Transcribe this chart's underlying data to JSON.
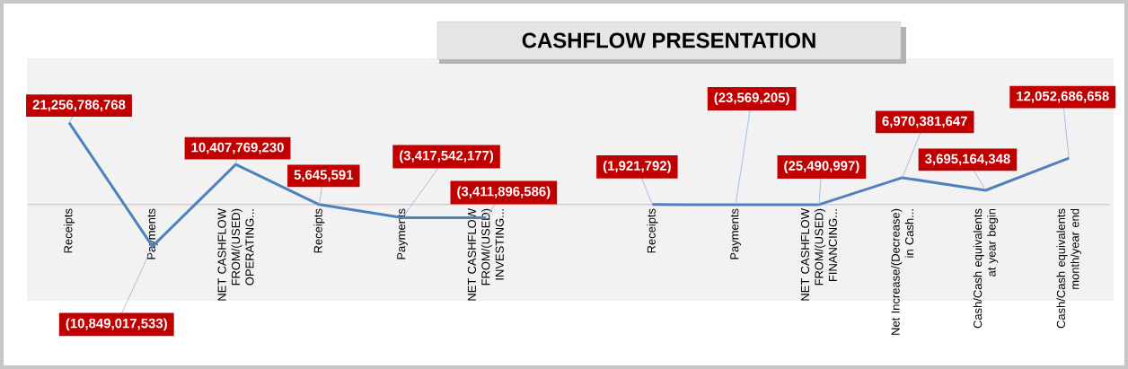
{
  "chart_data": {
    "type": "line",
    "title": "CASHFLOW PRESENTATION",
    "categories": [
      "Receipts",
      "Payments",
      "NET CASHFLOW FROM/(USED) OPERATING...",
      "Receipts",
      "Payments",
      "NET CASHFLOW FROM/(USED) INVESTING...",
      null,
      "Receipts",
      "Payments",
      "NET CASHFLOW FROM/(USED) FINANCING...",
      "Net Increase/(Decrease) in Cash...",
      "Cash/Cash equivalents at year begin",
      "Cash/Cash equivalents month/year end"
    ],
    "values": [
      21256786768,
      -10849017533,
      10407769230,
      5645591,
      -3417542177,
      -3411896586,
      null,
      -1921792,
      -23569205,
      -25490997,
      6970381647,
      3695164348,
      12052686658
    ],
    "value_labels": [
      "21,256,786,768",
      "(10,849,017,533)",
      "10,407,769,230",
      "5,645,591",
      "(3,417,542,177)",
      "(3,411,896,586)",
      null,
      "(1,921,792)",
      "(23,569,205)",
      "(25,490,997)",
      "6,970,381,647",
      "3,695,164,348",
      "12,052,686,658"
    ],
    "color": "#4f81bd"
  }
}
